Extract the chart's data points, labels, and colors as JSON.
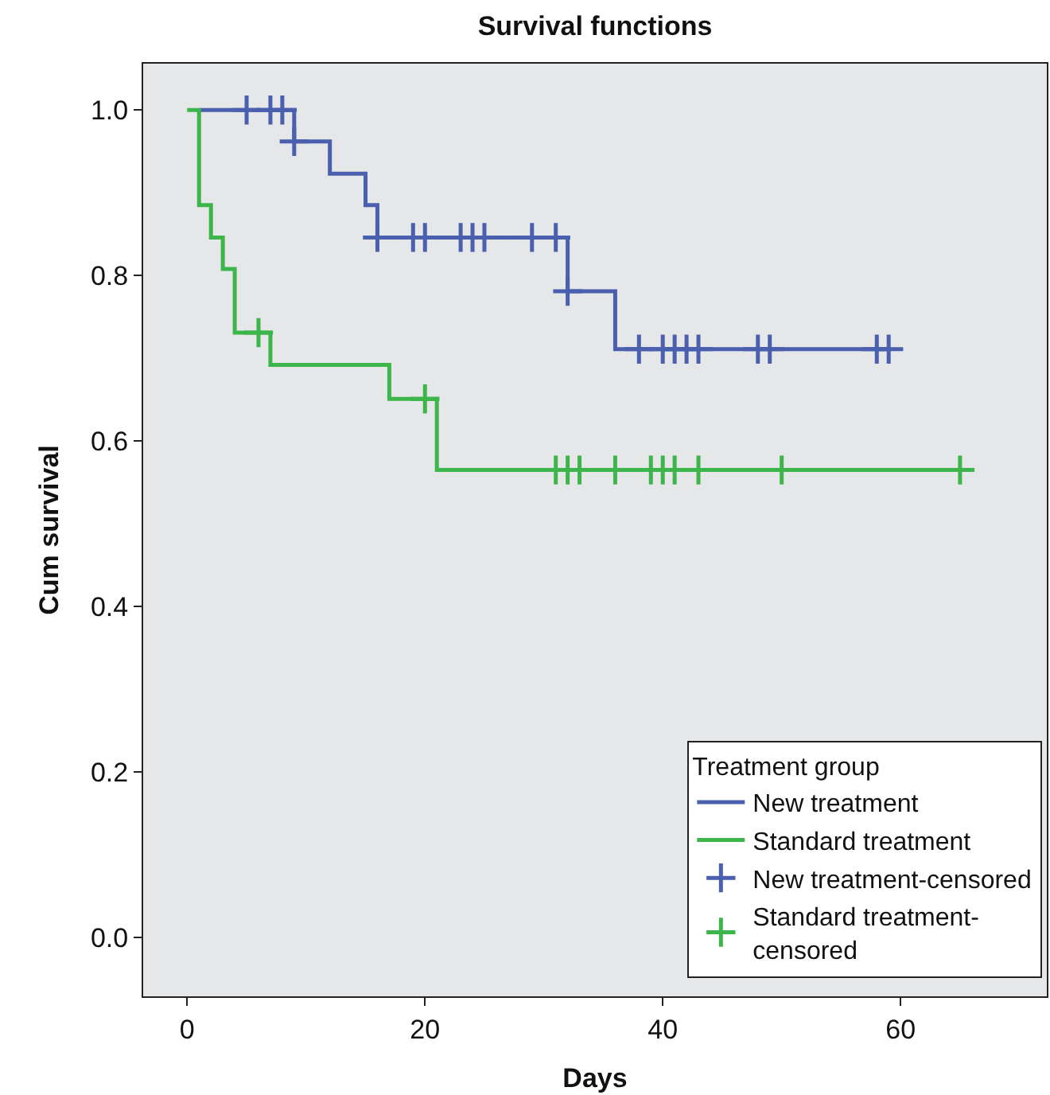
{
  "chart_data": {
    "type": "step",
    "title": "Survival functions",
    "xlabel": "Days",
    "ylabel": "Cum survival",
    "legend_title": "Treatment group",
    "legend": "bottom right",
    "grid": false,
    "xlim": [
      -3.7,
      72.3
    ],
    "xticks": [
      0,
      20,
      40,
      60
    ],
    "ylim": [
      -0.071,
      1.056
    ],
    "yticks": [
      {
        "value": 0,
        "label": "0.0"
      },
      {
        "value": 0.2,
        "label": "0.2"
      },
      {
        "value": 0.4,
        "label": "0.4"
      },
      {
        "value": 0.6,
        "label": "0.6"
      },
      {
        "value": 0.8,
        "label": "0.8"
      },
      {
        "value": 1,
        "label": "1.0"
      }
    ],
    "series": [
      {
        "name": "New treatment",
        "color": "#4a5fae",
        "x": [
          1,
          9,
          12,
          15,
          16,
          32,
          36,
          59
        ],
        "values": [
          1.0,
          0.962,
          0.923,
          0.885,
          0.846,
          0.781,
          0.711,
          0.711
        ]
      },
      {
        "name": "Standard treatment",
        "color": "#3cb54a",
        "x": [
          0,
          1,
          2,
          3,
          4,
          7,
          17,
          21,
          65
        ],
        "values": [
          1.0,
          0.885,
          0.846,
          0.808,
          0.731,
          0.692,
          0.651,
          0.565,
          0.565
        ]
      },
      {
        "name": "New treatment-censored",
        "color": "#4a5fae",
        "type": "scatter",
        "marker": "cross",
        "x": [
          5,
          7,
          8,
          9,
          16,
          19,
          20,
          23,
          24,
          25,
          29,
          31,
          32,
          38,
          40,
          41,
          42,
          43,
          48,
          49,
          58,
          59
        ],
        "values": [
          1,
          1,
          1,
          0.962,
          0.846,
          0.846,
          0.846,
          0.846,
          0.846,
          0.846,
          0.846,
          0.846,
          0.781,
          0.711,
          0.711,
          0.711,
          0.711,
          0.711,
          0.711,
          0.711,
          0.711,
          0.711
        ]
      },
      {
        "name": "Standard treatment-censored",
        "color": "#3cb54a",
        "type": "scatter",
        "marker": "cross",
        "x": [
          6,
          20,
          31,
          32,
          33,
          36,
          39,
          40,
          41,
          43,
          50,
          65
        ],
        "values": [
          0.731,
          0.651,
          0.565,
          0.565,
          0.565,
          0.565,
          0.565,
          0.565,
          0.565,
          0.565,
          0.565,
          0.565
        ]
      }
    ]
  }
}
